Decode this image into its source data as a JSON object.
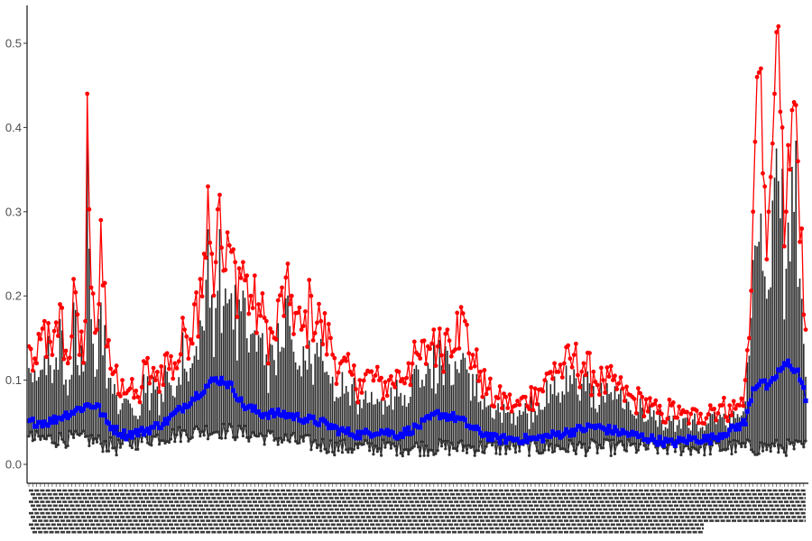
{
  "chart_data": {
    "type": "line",
    "title": "",
    "xlabel": "",
    "ylabel": "",
    "ylim": [
      -0.02,
      0.55
    ],
    "yticks": [
      0.0,
      0.1,
      0.2,
      0.3,
      0.4,
      0.5
    ],
    "ytick_labels": [
      "0.0",
      "0.1",
      "0.2",
      "0.3",
      "0.4",
      "0.5"
    ],
    "x_tick_labels_legible": false,
    "n_points": 400,
    "grid": false,
    "legend": "none",
    "series": [
      {
        "role": "upper",
        "color": "#ff0000",
        "marker": "circle",
        "key_points": [
          [
            0,
            0.14
          ],
          [
            4,
            0.12
          ],
          [
            8,
            0.17
          ],
          [
            12,
            0.13
          ],
          [
            16,
            0.19
          ],
          [
            20,
            0.12
          ],
          [
            23,
            0.22
          ],
          [
            26,
            0.13
          ],
          [
            29,
            0.17
          ],
          [
            30,
            0.44
          ],
          [
            32,
            0.21
          ],
          [
            35,
            0.16
          ],
          [
            37,
            0.29
          ],
          [
            40,
            0.14
          ],
          [
            44,
            0.11
          ],
          [
            48,
            0.1
          ],
          [
            52,
            0.09
          ],
          [
            56,
            0.08
          ],
          [
            60,
            0.12
          ],
          [
            65,
            0.1
          ],
          [
            70,
            0.13
          ],
          [
            75,
            0.12
          ],
          [
            80,
            0.16
          ],
          [
            85,
            0.19
          ],
          [
            88,
            0.22
          ],
          [
            90,
            0.25
          ],
          [
            92,
            0.33
          ],
          [
            94,
            0.25
          ],
          [
            96,
            0.24
          ],
          [
            98,
            0.32
          ],
          [
            100,
            0.23
          ],
          [
            103,
            0.26
          ],
          [
            106,
            0.24
          ],
          [
            110,
            0.24
          ],
          [
            114,
            0.2
          ],
          [
            118,
            0.19
          ],
          [
            122,
            0.17
          ],
          [
            126,
            0.15
          ],
          [
            130,
            0.21
          ],
          [
            135,
            0.2
          ],
          [
            140,
            0.16
          ],
          [
            145,
            0.2
          ],
          [
            150,
            0.17
          ],
          [
            155,
            0.15
          ],
          [
            160,
            0.12
          ],
          [
            165,
            0.11
          ],
          [
            170,
            0.1
          ],
          [
            175,
            0.11
          ],
          [
            180,
            0.1
          ],
          [
            185,
            0.1
          ],
          [
            190,
            0.11
          ],
          [
            195,
            0.12
          ],
          [
            200,
            0.13
          ],
          [
            205,
            0.14
          ],
          [
            208,
            0.16
          ],
          [
            210,
            0.14
          ],
          [
            215,
            0.16
          ],
          [
            220,
            0.18
          ],
          [
            224,
            0.17
          ],
          [
            228,
            0.13
          ],
          [
            232,
            0.11
          ],
          [
            236,
            0.09
          ],
          [
            240,
            0.08
          ],
          [
            245,
            0.08
          ],
          [
            250,
            0.07
          ],
          [
            255,
            0.08
          ],
          [
            260,
            0.09
          ],
          [
            265,
            0.1
          ],
          [
            270,
            0.12
          ],
          [
            275,
            0.12
          ],
          [
            280,
            0.13
          ],
          [
            285,
            0.12
          ],
          [
            290,
            0.11
          ],
          [
            295,
            0.1
          ],
          [
            300,
            0.1
          ],
          [
            305,
            0.09
          ],
          [
            310,
            0.08
          ],
          [
            315,
            0.08
          ],
          [
            320,
            0.07
          ],
          [
            325,
            0.06
          ],
          [
            330,
            0.07
          ],
          [
            335,
            0.06
          ],
          [
            340,
            0.06
          ],
          [
            345,
            0.06
          ],
          [
            350,
            0.07
          ],
          [
            355,
            0.07
          ],
          [
            360,
            0.07
          ],
          [
            365,
            0.07
          ],
          [
            368,
            0.1
          ],
          [
            370,
            0.15
          ],
          [
            372,
            0.3
          ],
          [
            374,
            0.46
          ],
          [
            376,
            0.47
          ],
          [
            378,
            0.33
          ],
          [
            380,
            0.3
          ],
          [
            383,
            0.44
          ],
          [
            385,
            0.52
          ],
          [
            387,
            0.4
          ],
          [
            389,
            0.3
          ],
          [
            391,
            0.35
          ],
          [
            393,
            0.43
          ],
          [
            395,
            0.36
          ],
          [
            397,
            0.28
          ],
          [
            399,
            0.16
          ]
        ]
      },
      {
        "role": "lower",
        "color": "#333333",
        "marker": "circle",
        "key_points": [
          [
            0,
            0.03
          ],
          [
            30,
            0.03
          ],
          [
            45,
            0.02
          ],
          [
            60,
            0.03
          ],
          [
            90,
            0.04
          ],
          [
            100,
            0.04
          ],
          [
            130,
            0.03
          ],
          [
            160,
            0.02
          ],
          [
            200,
            0.02
          ],
          [
            230,
            0.02
          ],
          [
            260,
            0.02
          ],
          [
            300,
            0.02
          ],
          [
            330,
            0.02
          ],
          [
            360,
            0.02
          ],
          [
            370,
            0.02
          ],
          [
            385,
            0.02
          ],
          [
            399,
            0.02
          ]
        ]
      },
      {
        "role": "mean",
        "color": "#0000ff",
        "marker": "square",
        "key_points": [
          [
            0,
            0.05
          ],
          [
            10,
            0.05
          ],
          [
            20,
            0.06
          ],
          [
            30,
            0.07
          ],
          [
            35,
            0.07
          ],
          [
            40,
            0.05
          ],
          [
            45,
            0.04
          ],
          [
            50,
            0.035
          ],
          [
            60,
            0.04
          ],
          [
            70,
            0.05
          ],
          [
            80,
            0.07
          ],
          [
            90,
            0.09
          ],
          [
            95,
            0.1
          ],
          [
            100,
            0.1
          ],
          [
            105,
            0.09
          ],
          [
            110,
            0.07
          ],
          [
            120,
            0.06
          ],
          [
            130,
            0.06
          ],
          [
            140,
            0.055
          ],
          [
            150,
            0.05
          ],
          [
            160,
            0.04
          ],
          [
            170,
            0.035
          ],
          [
            180,
            0.04
          ],
          [
            190,
            0.035
          ],
          [
            200,
            0.045
          ],
          [
            210,
            0.06
          ],
          [
            220,
            0.055
          ],
          [
            230,
            0.04
          ],
          [
            240,
            0.03
          ],
          [
            250,
            0.03
          ],
          [
            260,
            0.03
          ],
          [
            270,
            0.035
          ],
          [
            280,
            0.04
          ],
          [
            290,
            0.045
          ],
          [
            300,
            0.04
          ],
          [
            310,
            0.035
          ],
          [
            320,
            0.03
          ],
          [
            330,
            0.025
          ],
          [
            340,
            0.03
          ],
          [
            350,
            0.03
          ],
          [
            360,
            0.04
          ],
          [
            368,
            0.05
          ],
          [
            372,
            0.09
          ],
          [
            376,
            0.1
          ],
          [
            380,
            0.09
          ],
          [
            385,
            0.11
          ],
          [
            390,
            0.12
          ],
          [
            395,
            0.11
          ],
          [
            399,
            0.08
          ]
        ]
      }
    ],
    "band_color": "#2a2a2a"
  }
}
